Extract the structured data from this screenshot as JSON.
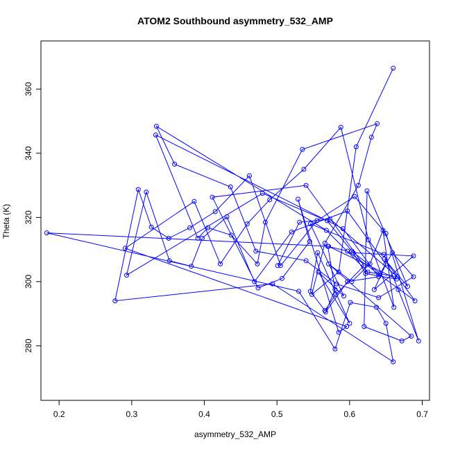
{
  "chart_data": {
    "type": "line",
    "title": "ATOM2 Southbound asymmetry_532_AMP",
    "xlabel": "asymmetry_532_AMP",
    "ylabel": "Theta (K)",
    "xlim": [
      0.175,
      0.71
    ],
    "ylim": [
      263,
      375
    ],
    "xticks": [
      "0.2",
      "0.3",
      "0.4",
      "0.5",
      "0.6",
      "0.7"
    ],
    "yticks": [
      "280",
      "300",
      "320",
      "340",
      "360"
    ],
    "grid": false,
    "legend": "none",
    "color": "#0000ff",
    "series": [
      {
        "markers": "open-circle",
        "points": [
          [
            0.66,
            366.5
          ],
          [
            0.609,
            342.0
          ],
          [
            0.585,
            303.0
          ],
          [
            0.548,
            296.0
          ],
          [
            0.566,
            312.0
          ],
          [
            0.612,
            330.0
          ],
          [
            0.63,
            345.0
          ],
          [
            0.638,
            349.2
          ],
          [
            0.535,
            341.2
          ],
          [
            0.484,
            318.5
          ],
          [
            0.473,
            305.5
          ],
          [
            0.437,
            314.5
          ],
          [
            0.405,
            316.8
          ],
          [
            0.391,
            313.5
          ],
          [
            0.333,
            345.7
          ],
          [
            0.591,
            316.5
          ],
          [
            0.64,
            301.5
          ],
          [
            0.597,
            300.0
          ],
          [
            0.567,
            290.5
          ],
          [
            0.58,
            297.5
          ],
          [
            0.57,
            311.0
          ],
          [
            0.597,
            309.5
          ],
          [
            0.69,
            294.0
          ],
          [
            0.648,
            307.0
          ],
          [
            0.68,
            298.5
          ],
          [
            0.624,
            328.3
          ],
          [
            0.62,
            286.0
          ],
          [
            0.672,
            281.5
          ],
          [
            0.685,
            283.0
          ],
          [
            0.571,
            305.5
          ],
          [
            0.603,
            300.0
          ],
          [
            0.628,
            305.5
          ],
          [
            0.646,
            316.0
          ],
          [
            0.661,
            292.0
          ],
          [
            0.626,
            313.0
          ],
          [
            0.588,
            348.1
          ],
          [
            0.537,
            335.0
          ],
          [
            0.49,
            325.5
          ],
          [
            0.459,
            318.0
          ],
          [
            0.422,
            305.5
          ],
          [
            0.386,
            325.0
          ],
          [
            0.291,
            310.4
          ],
          [
            0.596,
            286.0
          ],
          [
            0.585,
            284.2
          ],
          [
            0.529,
            325.7
          ],
          [
            0.545,
            312.5
          ],
          [
            0.507,
            301.0
          ],
          [
            0.474,
            298.0
          ],
          [
            0.411,
            326.3
          ],
          [
            0.54,
            330.0
          ],
          [
            0.62,
            305.0
          ],
          [
            0.581,
            296.0
          ],
          [
            0.566,
            291.0
          ],
          [
            0.546,
            297.0
          ],
          [
            0.556,
            309.0
          ],
          [
            0.6,
            287.0
          ],
          [
            0.557,
            303.0
          ],
          [
            0.592,
            295.5
          ],
          [
            0.546,
            318.0
          ],
          [
            0.647,
            308.5
          ],
          [
            0.667,
            297.5
          ],
          [
            0.695,
            281.5
          ],
          [
            0.65,
            315.0
          ],
          [
            0.607,
            326.5
          ],
          [
            0.555,
            319.0
          ],
          [
            0.505,
            305.0
          ],
          [
            0.462,
            333.0
          ],
          [
            0.415,
            321.8
          ],
          [
            0.38,
            316.8
          ],
          [
            0.351,
            313.5
          ],
          [
            0.327,
            317.0
          ],
          [
            0.309,
            328.7
          ],
          [
            0.277,
            294.0
          ],
          [
            0.494,
            299.3
          ],
          [
            0.66,
            275.0
          ],
          [
            0.65,
            287.0
          ],
          [
            0.637,
            292.0
          ],
          [
            0.601,
            293.5
          ],
          [
            0.58,
            279.0
          ],
          [
            0.53,
            297.0
          ],
          [
            0.183,
            315.2
          ],
          [
            0.571,
            311.0
          ],
          [
            0.665,
            300.8
          ],
          [
            0.622,
            302.5
          ],
          [
            0.605,
            309.0
          ],
          [
            0.688,
            308.0
          ],
          [
            0.634,
            297.5
          ],
          [
            0.65,
            305.5
          ],
          [
            0.597,
            322.0
          ],
          [
            0.52,
            315.5
          ],
          [
            0.469,
            300.0
          ],
          [
            0.431,
            320.2
          ],
          [
            0.397,
            313.5
          ],
          [
            0.382,
            304.8
          ],
          [
            0.352,
            306.5
          ],
          [
            0.32,
            327.9
          ],
          [
            0.293,
            302.0
          ],
          [
            0.48,
            327.5
          ],
          [
            0.569,
            319.0
          ],
          [
            0.603,
            309.5
          ],
          [
            0.642,
            302.5
          ],
          [
            0.659,
            309.0
          ],
          [
            0.688,
            301.5
          ],
          [
            0.64,
            295.0
          ],
          [
            0.582,
            299.3
          ],
          [
            0.54,
            306.5
          ],
          [
            0.471,
            309.5
          ],
          [
            0.436,
            329.5
          ],
          [
            0.359,
            336.6
          ],
          [
            0.334,
            348.4
          ],
          [
            0.568,
            316.0
          ],
          [
            0.625,
            303.0
          ],
          [
            0.666,
            301.5
          ],
          [
            0.573,
            319.5
          ],
          [
            0.531,
            318.5
          ],
          [
            0.501,
            305.0
          ]
        ]
      }
    ]
  }
}
